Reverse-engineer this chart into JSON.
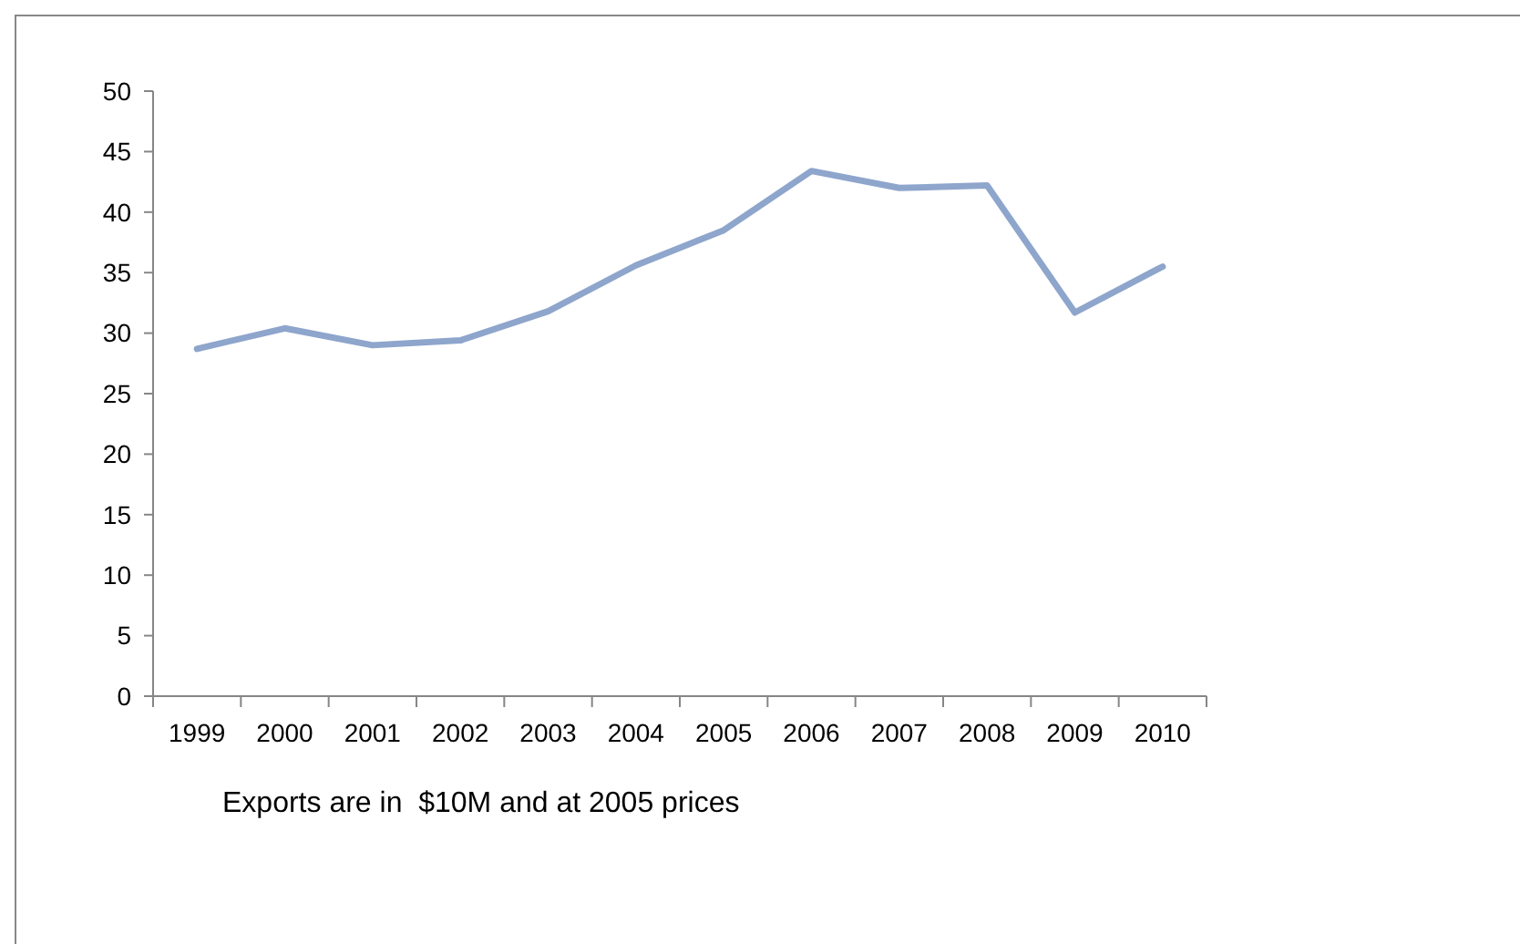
{
  "chart_data": {
    "type": "line",
    "categories": [
      "1999",
      "2000",
      "2001",
      "2002",
      "2003",
      "2004",
      "2005",
      "2006",
      "2007",
      "2008",
      "2009",
      "2010"
    ],
    "series": [
      {
        "color": "#8ea5cc",
        "values": [
          28.7,
          30.4,
          29.0,
          29.4,
          31.8,
          35.6,
          38.5,
          43.4,
          42.0,
          42.2,
          31.7,
          35.5
        ]
      }
    ],
    "ylim": [
      0,
      50
    ],
    "yticks": [
      0,
      5,
      10,
      15,
      20,
      25,
      30,
      35,
      40,
      45,
      50
    ],
    "grid": false,
    "marker": "none",
    "line_style": "solid",
    "annotations": [
      "Exports are in  $10M and at 2005 prices"
    ]
  }
}
